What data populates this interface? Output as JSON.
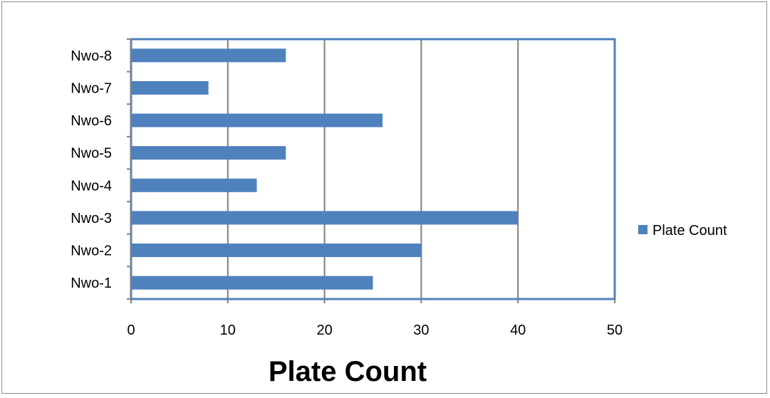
{
  "chart_data": {
    "type": "bar",
    "orientation": "horizontal",
    "categories": [
      "Nwo-1",
      "Nwo-2",
      "Nwo-3",
      "Nwo-4",
      "Nwo-5",
      "Nwo-6",
      "Nwo-7",
      "Nwo-8"
    ],
    "series": [
      {
        "name": "Plate Count",
        "values": [
          25,
          30,
          40,
          13,
          16,
          26,
          8,
          16
        ]
      }
    ],
    "xlabel": "Plate Count",
    "ylabel": "",
    "xlim": [
      0,
      50
    ],
    "x_ticks": [
      "0",
      "10",
      "20",
      "30",
      "40",
      "50"
    ],
    "grid": "vertical",
    "legend_position": "right",
    "colors": {
      "bar": "#4f81bd",
      "plot_border": "#4f81bd",
      "grid": "#7f7f7f"
    }
  }
}
